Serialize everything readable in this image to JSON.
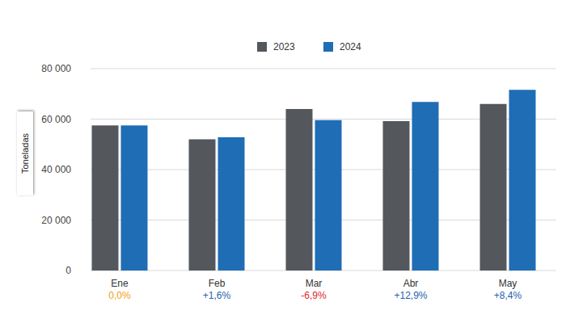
{
  "chart_data": {
    "type": "bar",
    "y_label": "Toneladas",
    "categories": [
      "Ene",
      "Feb",
      "Mar",
      "Abr",
      "May"
    ],
    "series": [
      {
        "name": "2023",
        "color": "#54585c",
        "values": [
          57500,
          52000,
          64000,
          59200,
          66000
        ]
      },
      {
        "name": "2024",
        "color": "#1f6db5",
        "values": [
          57500,
          52800,
          59600,
          66800,
          71600
        ]
      }
    ],
    "annotations": [
      {
        "text": "0,0%",
        "color": "#f39c12"
      },
      {
        "text": "+1,6%",
        "color": "#1f5fb0"
      },
      {
        "text": "-6,9%",
        "color": "#e0262b"
      },
      {
        "text": "+12,9%",
        "color": "#1f5fb0"
      },
      {
        "text": "+8,4%",
        "color": "#1f5fb0"
      }
    ],
    "ylim": [
      0,
      80000
    ],
    "yticks": [
      {
        "value": 0,
        "label": "0"
      },
      {
        "value": 20000,
        "label": "20 000"
      },
      {
        "value": 40000,
        "label": "40 000"
      },
      {
        "value": 60000,
        "label": "60 000"
      },
      {
        "value": 80000,
        "label": "80 000"
      }
    ],
    "grid": true,
    "legend": "top"
  }
}
